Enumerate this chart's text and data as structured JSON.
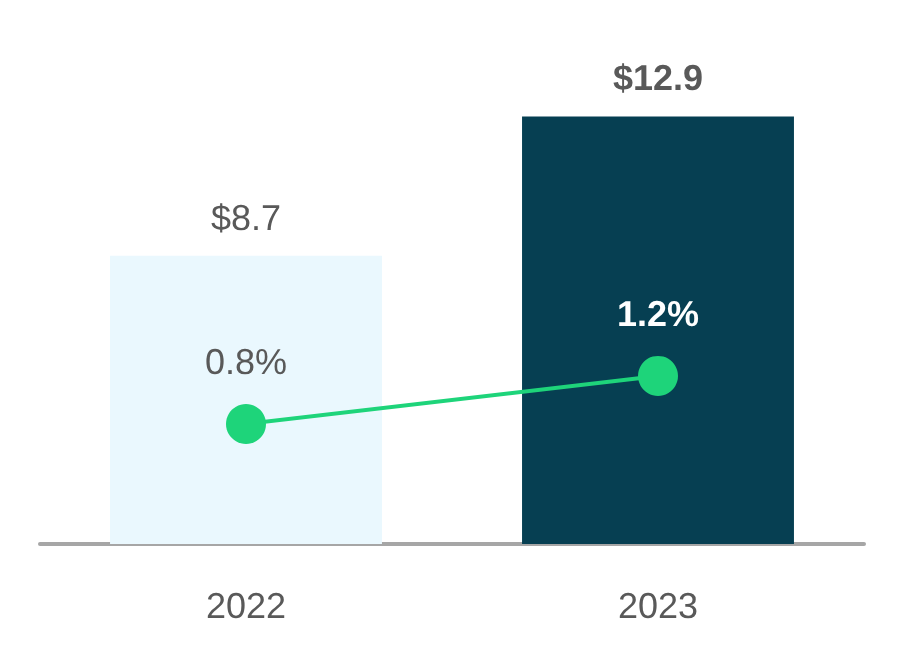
{
  "chart_data": {
    "type": "bar",
    "categories": [
      "2022",
      "2023"
    ],
    "tick_labels": "x",
    "grid": false,
    "series": [
      {
        "colors": [
          "#eaf8fe",
          "#063f52"
        ],
        "values": [
          8.7,
          12.9
        ],
        "value_labels": [
          "$8.7",
          "$12.9"
        ]
      },
      {
        "type": "line",
        "axis": "y2",
        "color": "#1ed47a",
        "marker": "circle",
        "line_style": "solid",
        "values": [
          0.8,
          1.2
        ],
        "value_labels": [
          "0.8%",
          "1.2%"
        ]
      }
    ]
  }
}
